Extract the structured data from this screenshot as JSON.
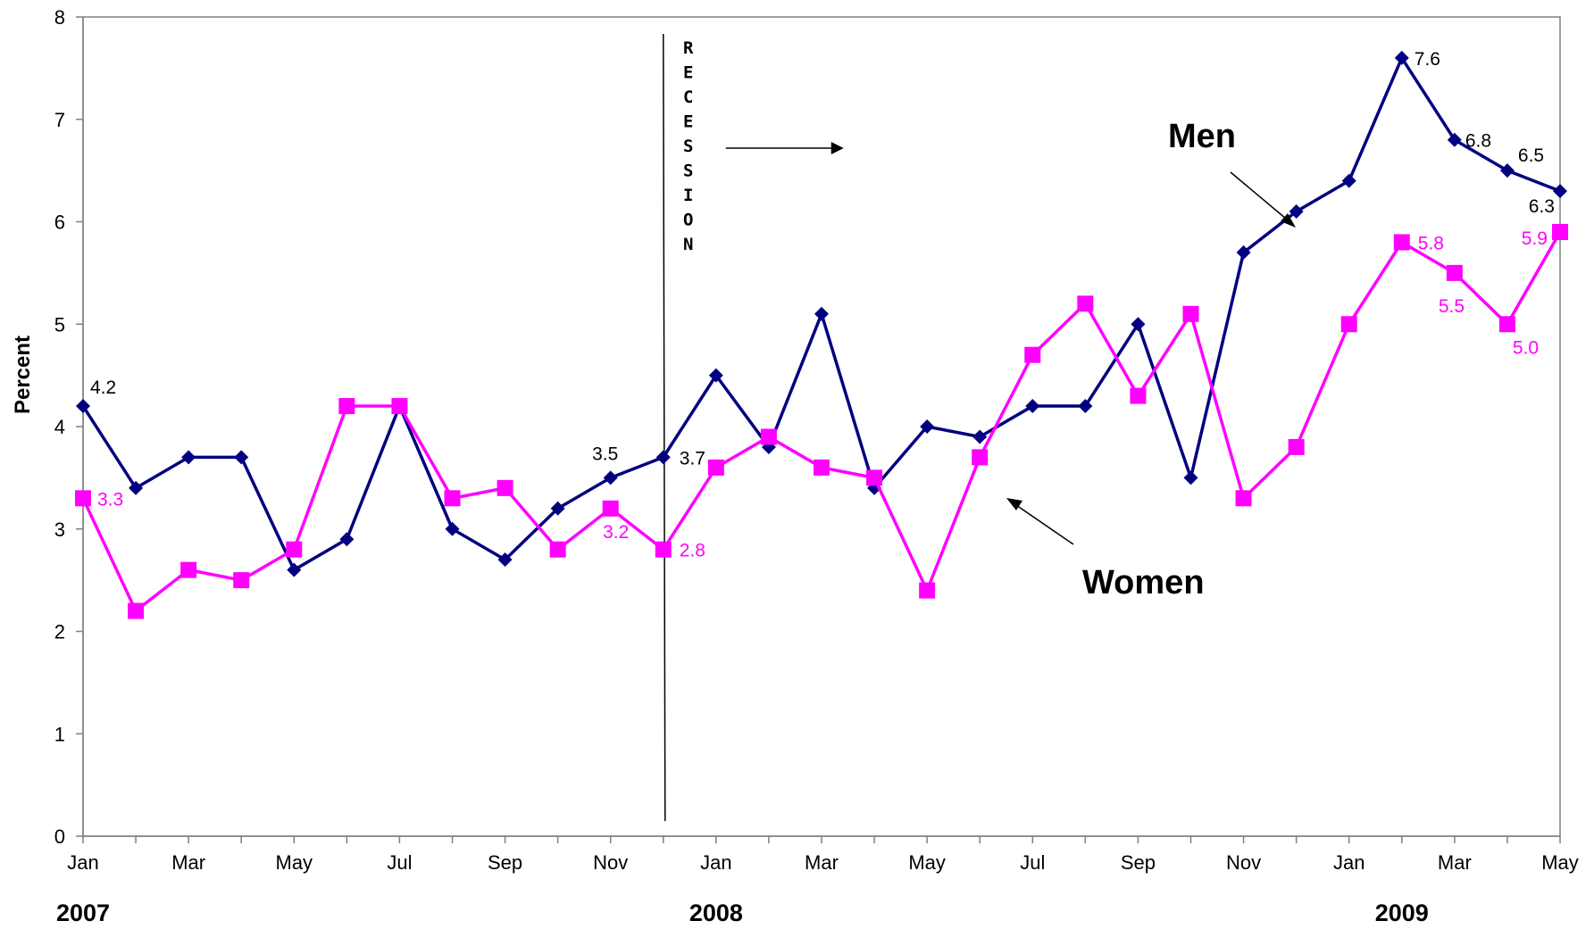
{
  "chart_data": {
    "type": "line",
    "title": "",
    "xlabel": "",
    "ylabel": "Percent",
    "ylim": [
      0,
      8
    ],
    "yticks": [
      0,
      1,
      2,
      3,
      4,
      5,
      6,
      7,
      8
    ],
    "grid": false,
    "x": [
      "Jan 2007",
      "Feb 2007",
      "Mar 2007",
      "Apr 2007",
      "May 2007",
      "Jun 2007",
      "Jul 2007",
      "Aug 2007",
      "Sep 2007",
      "Oct 2007",
      "Nov 2007",
      "Dec 2007",
      "Jan 2008",
      "Feb 2008",
      "Mar 2008",
      "Apr 2008",
      "May 2008",
      "Jun 2008",
      "Jul 2008",
      "Aug 2008",
      "Sep 2008",
      "Oct 2008",
      "Nov 2008",
      "Dec 2008",
      "Jan 2009",
      "Feb 2009",
      "Mar 2009",
      "Apr 2009",
      "May 2009"
    ],
    "tick_labels": [
      "Jan",
      "",
      "Mar",
      "",
      "May",
      "",
      "Jul",
      "",
      "Sep",
      "",
      "Nov",
      "",
      "Jan",
      "",
      "Mar",
      "",
      "May",
      "",
      "Jul",
      "",
      "Sep",
      "",
      "Nov",
      "",
      "Jan",
      "",
      "Mar",
      "",
      "May"
    ],
    "years": [
      {
        "label": "2007",
        "at": "Jan 2007"
      },
      {
        "label": "2008",
        "at": "Jan 2008"
      },
      {
        "label": "2009",
        "at": "Feb 2009"
      }
    ],
    "series": [
      {
        "name": "Men",
        "color": "#000080",
        "marker": "diamond",
        "values": [
          4.2,
          3.4,
          3.7,
          3.7,
          2.6,
          2.9,
          4.2,
          3.0,
          2.7,
          3.2,
          3.5,
          3.7,
          4.5,
          3.8,
          5.1,
          3.4,
          4.0,
          3.9,
          4.2,
          4.2,
          5.0,
          3.5,
          5.7,
          6.1,
          6.4,
          7.6,
          6.8,
          6.5,
          6.3
        ],
        "labels": [
          {
            "index": 0,
            "text": "4.2"
          },
          {
            "index": 10,
            "text": "3.5"
          },
          {
            "index": 11,
            "text": "3.7"
          },
          {
            "index": 25,
            "text": "7.6"
          },
          {
            "index": 26,
            "text": "6.8"
          },
          {
            "index": 27,
            "text": "6.5"
          },
          {
            "index": 28,
            "text": "6.3"
          }
        ]
      },
      {
        "name": "Women",
        "color": "#FF00FF",
        "marker": "square",
        "values": [
          3.3,
          2.2,
          2.6,
          2.5,
          2.8,
          4.2,
          4.2,
          3.3,
          3.4,
          2.8,
          3.2,
          2.8,
          3.6,
          3.9,
          3.6,
          3.5,
          2.4,
          3.7,
          4.7,
          5.2,
          4.3,
          5.1,
          3.3,
          3.8,
          5.0,
          5.8,
          5.5,
          5.0,
          5.9
        ],
        "labels": [
          {
            "index": 0,
            "text": "3.3"
          },
          {
            "index": 10,
            "text": "3.2"
          },
          {
            "index": 11,
            "text": "2.8"
          },
          {
            "index": 25,
            "text": "5.8"
          },
          {
            "index": 26,
            "text": "5.5"
          },
          {
            "index": 27,
            "text": "5.0"
          },
          {
            "index": 28,
            "text": "5.9"
          }
        ]
      }
    ],
    "annotations": {
      "recession": {
        "text": "RECESSION",
        "at": "Dec 2007"
      },
      "men_label": "Men",
      "women_label": "Women"
    }
  }
}
